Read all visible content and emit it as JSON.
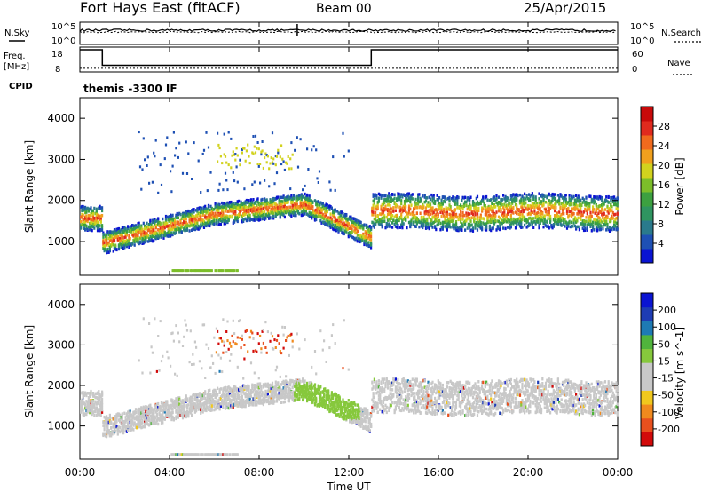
{
  "header": {
    "station": "Fort Hays East (fitACF)",
    "beam": "Beam 00",
    "date": "25/Apr/2015"
  },
  "colors": {
    "power_scale": [
      "#0a14d2",
      "#1e50b4",
      "#2a7a8c",
      "#2f9460",
      "#3ca040",
      "#7cbe2a",
      "#d2d21e",
      "#f0a01e",
      "#f06a1e",
      "#e02a1e",
      "#c80a0a"
    ],
    "velocity_scale": [
      "#d20a0a",
      "#e8501e",
      "#f08a1e",
      "#f0c81e",
      "#c8c8c8",
      "#c8c8c8",
      "#86c83c",
      "#50b43c",
      "#1e7ab4",
      "#1e3cb4",
      "#0a14d2"
    ],
    "ground_scatter": "#c8c8c8"
  },
  "chart_data": [
    {
      "id": "summary",
      "type": "line",
      "labels": {
        "nsky": "N.Sky",
        "nsearch": "N.Search",
        "freq_top": "Freq.",
        "freq_unit": "[MHz]",
        "nave": "Nave",
        "cpid": "CPID",
        "cpid_value": "themis -3300 IF",
        "nsky_ticks_top": "10^5",
        "nsky_ticks_bottom": "10^0",
        "nsearch_ticks_top": "10^5",
        "nsearch_ticks_bottom": "10^0",
        "freq_ticks": [
          "18",
          "8"
        ],
        "nave_ticks": [
          "60",
          "0"
        ]
      },
      "frequency_steps": [
        {
          "x": 0.0,
          "y": 18
        },
        {
          "x": 1.0,
          "y": 11
        },
        {
          "x": 13.0,
          "y": 18
        },
        {
          "x": 24.0,
          "y": 18
        }
      ],
      "nave_level": 10,
      "noise_sky_level": 3.2,
      "noise_search_level": 2.8,
      "noise_sky_spike_x": 9.7
    },
    {
      "id": "power",
      "type": "heatmap",
      "ylabel": "Slant Range [km]",
      "yticks": [
        "4000",
        "3000",
        "2000",
        "1000"
      ],
      "ylim": [
        180,
        4500
      ],
      "xlim": [
        0,
        24
      ],
      "colorbar_label": "Power [dB]",
      "colorbar_ticks": [
        "28",
        "24",
        "20",
        "16",
        "12",
        "8",
        "4"
      ],
      "colorbar_range": [
        0,
        30
      ]
    },
    {
      "id": "velocity",
      "type": "heatmap",
      "ylabel": "Slant Range [km]",
      "yticks": [
        "4000",
        "3000",
        "2000",
        "1000"
      ],
      "ylim": [
        180,
        4500
      ],
      "xlim": [
        0,
        24
      ],
      "xticks": [
        "00:00",
        "04:00",
        "08:00",
        "12:00",
        "16:00",
        "20:00",
        "00:00"
      ],
      "xlabel": "Time UT",
      "colorbar_label": "Velocity [m s^-1]",
      "colorbar_ticks": [
        "200",
        "100",
        "50",
        "15",
        "-15",
        "-50",
        "-100",
        "-200"
      ],
      "colorbar_range": [
        -250,
        250
      ]
    }
  ]
}
